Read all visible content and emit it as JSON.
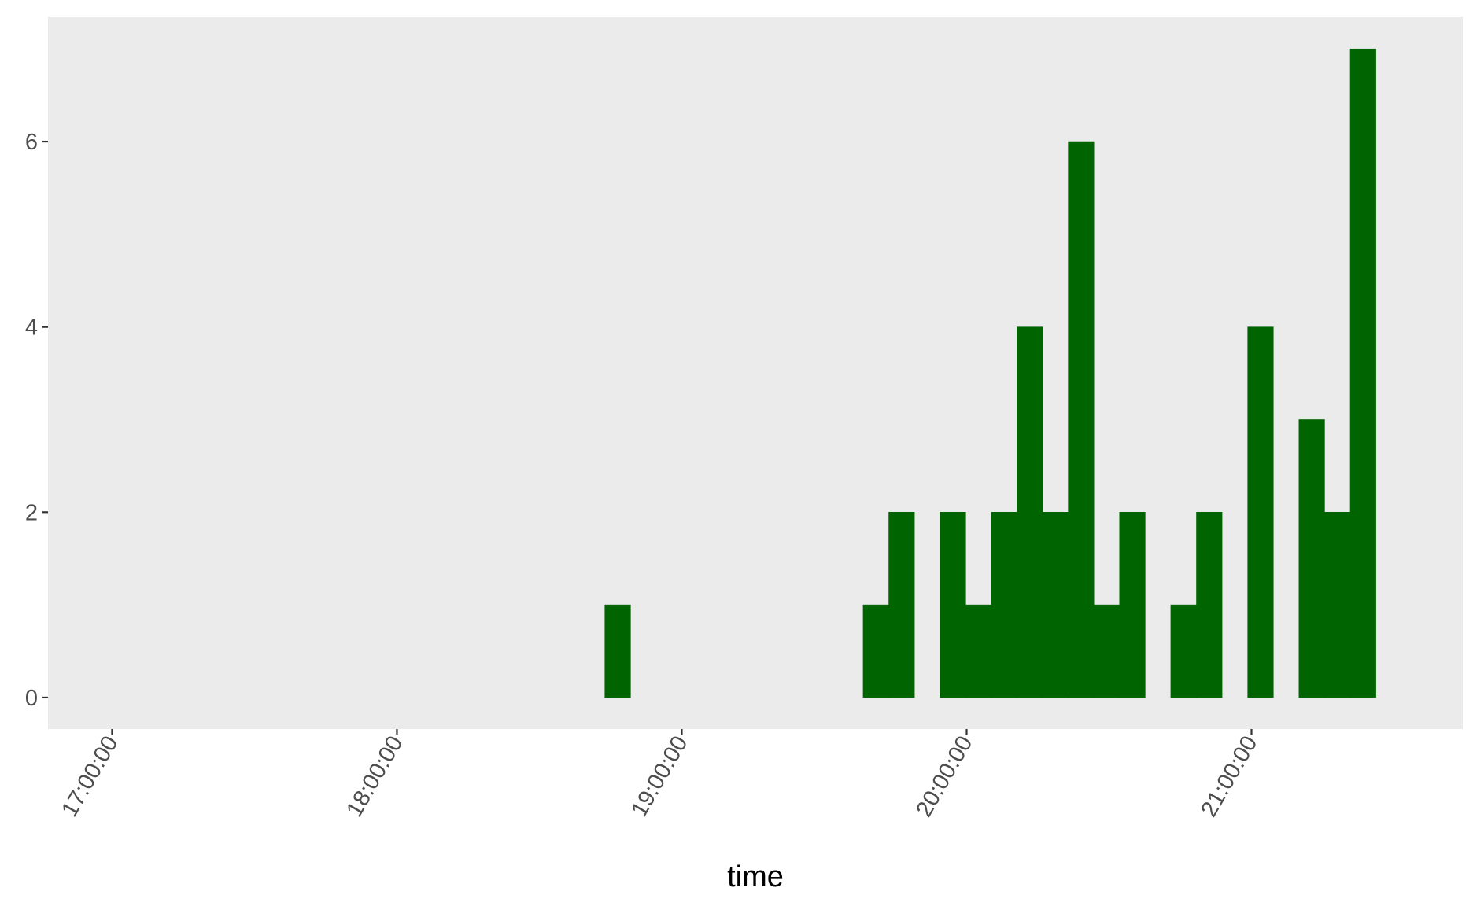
{
  "chart_data": {
    "type": "bar",
    "title": "",
    "xlabel": "time",
    "ylabel": "",
    "x_ticks": [
      "17:00:00",
      "18:00:00",
      "19:00:00",
      "20:00:00",
      "21:00:00"
    ],
    "y_ticks": [
      0,
      2,
      4,
      6
    ],
    "xlim": [
      "16:46:30",
      "21:44:30"
    ],
    "ylim": [
      -0.34,
      7.35
    ],
    "bin_minutes": 5.4,
    "bars": [
      {
        "start": "18:43:48",
        "end": "18:49:12",
        "count": 1
      },
      {
        "start": "19:38:12",
        "end": "19:43:36",
        "count": 1
      },
      {
        "start": "19:43:36",
        "end": "19:49:00",
        "count": 2
      },
      {
        "start": "19:54:24",
        "end": "19:59:48",
        "count": 2
      },
      {
        "start": "19:59:48",
        "end": "20:05:12",
        "count": 1
      },
      {
        "start": "20:05:12",
        "end": "20:10:36",
        "count": 2
      },
      {
        "start": "20:10:36",
        "end": "20:16:00",
        "count": 4
      },
      {
        "start": "20:16:00",
        "end": "20:21:24",
        "count": 2
      },
      {
        "start": "20:21:24",
        "end": "20:26:48",
        "count": 6
      },
      {
        "start": "20:26:48",
        "end": "20:32:12",
        "count": 1
      },
      {
        "start": "20:32:12",
        "end": "20:37:36",
        "count": 2
      },
      {
        "start": "20:43:00",
        "end": "20:48:24",
        "count": 1
      },
      {
        "start": "20:48:24",
        "end": "20:53:48",
        "count": 2
      },
      {
        "start": "20:59:12",
        "end": "21:04:36",
        "count": 4
      },
      {
        "start": "21:10:00",
        "end": "21:15:24",
        "count": 3
      },
      {
        "start": "21:15:24",
        "end": "21:20:48",
        "count": 2
      },
      {
        "start": "21:20:48",
        "end": "21:26:12",
        "count": 7
      }
    ],
    "grid": false,
    "legend": "none",
    "colors": {
      "panel_background": "#ebebeb",
      "bar_fill": "#006400",
      "tick_label": "#4d4d4d",
      "tick_mark": "#333333",
      "axis_title": "#000000"
    }
  }
}
